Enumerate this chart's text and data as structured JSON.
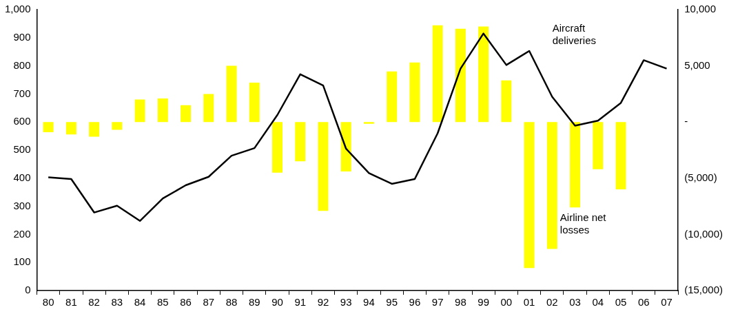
{
  "chart_data": {
    "type": "bar",
    "categories": [
      "80",
      "81",
      "82",
      "83",
      "84",
      "85",
      "86",
      "87",
      "88",
      "89",
      "90",
      "91",
      "92",
      "93",
      "94",
      "95",
      "96",
      "97",
      "98",
      "99",
      "00",
      "01",
      "02",
      "03",
      "04",
      "05",
      "06",
      "07"
    ],
    "series": [
      {
        "name": "Airline net losses",
        "axis": "y2",
        "color": "#ffff00",
        "values": [
          -900,
          -1100,
          -1300,
          -700,
          2000,
          2100,
          1500,
          2500,
          5000,
          3500,
          -4500,
          -3500,
          -7900,
          -4400,
          -150,
          4500,
          5300,
          8600,
          8300,
          8500,
          3700,
          -13000,
          -11300,
          -7600,
          -4200,
          -6000,
          null,
          null
        ]
      },
      {
        "name": "Aircraft deliveries",
        "type": "line",
        "color": "#000000",
        "values": [
          403,
          397,
          278,
          302,
          248,
          328,
          375,
          405,
          480,
          507,
          625,
          770,
          730,
          505,
          418,
          380,
          397,
          560,
          790,
          915,
          803,
          853,
          690,
          587,
          605,
          668,
          820,
          790
        ]
      }
    ],
    "ylim": [
      0,
      1000
    ],
    "yticks": [
      0,
      100,
      200,
      300,
      400,
      500,
      600,
      700,
      800,
      900,
      {
        "value": 1000,
        "label": "1,000"
      }
    ],
    "y2lim": [
      -15000,
      10000
    ],
    "y2ticks": [
      {
        "value": -15000,
        "label": "(15,000)"
      },
      {
        "value": -10000,
        "label": "(10,000)"
      },
      {
        "value": -5000,
        "label": "(5,000)"
      },
      {
        "value": 0,
        "label": "-"
      },
      {
        "value": 5000,
        "label": "5,000"
      },
      {
        "value": 10000,
        "label": "10,000"
      }
    ],
    "grid": false,
    "legend": false,
    "marker": "none",
    "line_style": "solid"
  }
}
